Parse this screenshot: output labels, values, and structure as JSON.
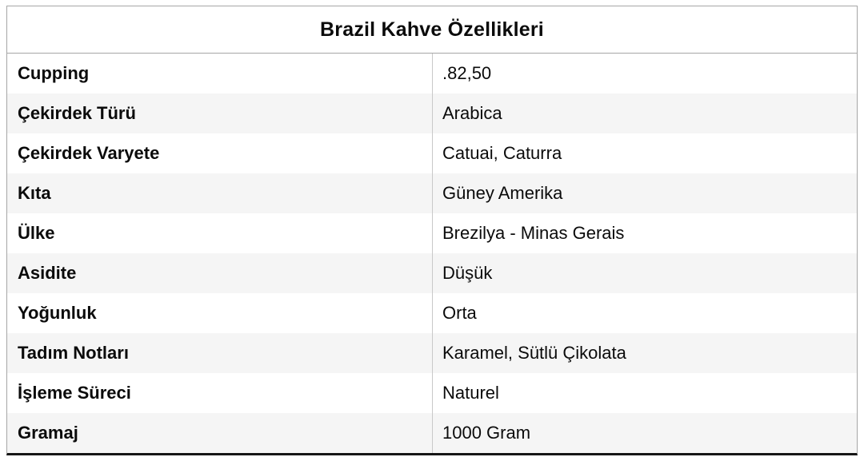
{
  "table": {
    "title": "Brazil Kahve Özellikleri",
    "rows": [
      {
        "label": "Cupping",
        "value": ".82,50"
      },
      {
        "label": "Çekirdek Türü",
        "value": "Arabica"
      },
      {
        "label": "Çekirdek Varyete",
        "value": "Catuai, Caturra"
      },
      {
        "label": "Kıta",
        "value": "Güney Amerika"
      },
      {
        "label": "Ülke",
        "value": "Brezilya - Minas Gerais"
      },
      {
        "label": "Asidite",
        "value": "Düşük"
      },
      {
        "label": "Yoğunluk",
        "value": "Orta"
      },
      {
        "label": "Tadım Notları",
        "value": "Karamel, Sütlü Çikolata"
      },
      {
        "label": "İşleme Süreci",
        "value": "Naturel"
      },
      {
        "label": "Gramaj",
        "value": "1000 Gram"
      }
    ]
  },
  "colors": {
    "alt_row_bg": "#f5f5f5",
    "outer_border": "#a6a6a6",
    "column_divider": "#c9c9c9",
    "bottom_border": "#161616",
    "text": "#0b0b0b"
  }
}
